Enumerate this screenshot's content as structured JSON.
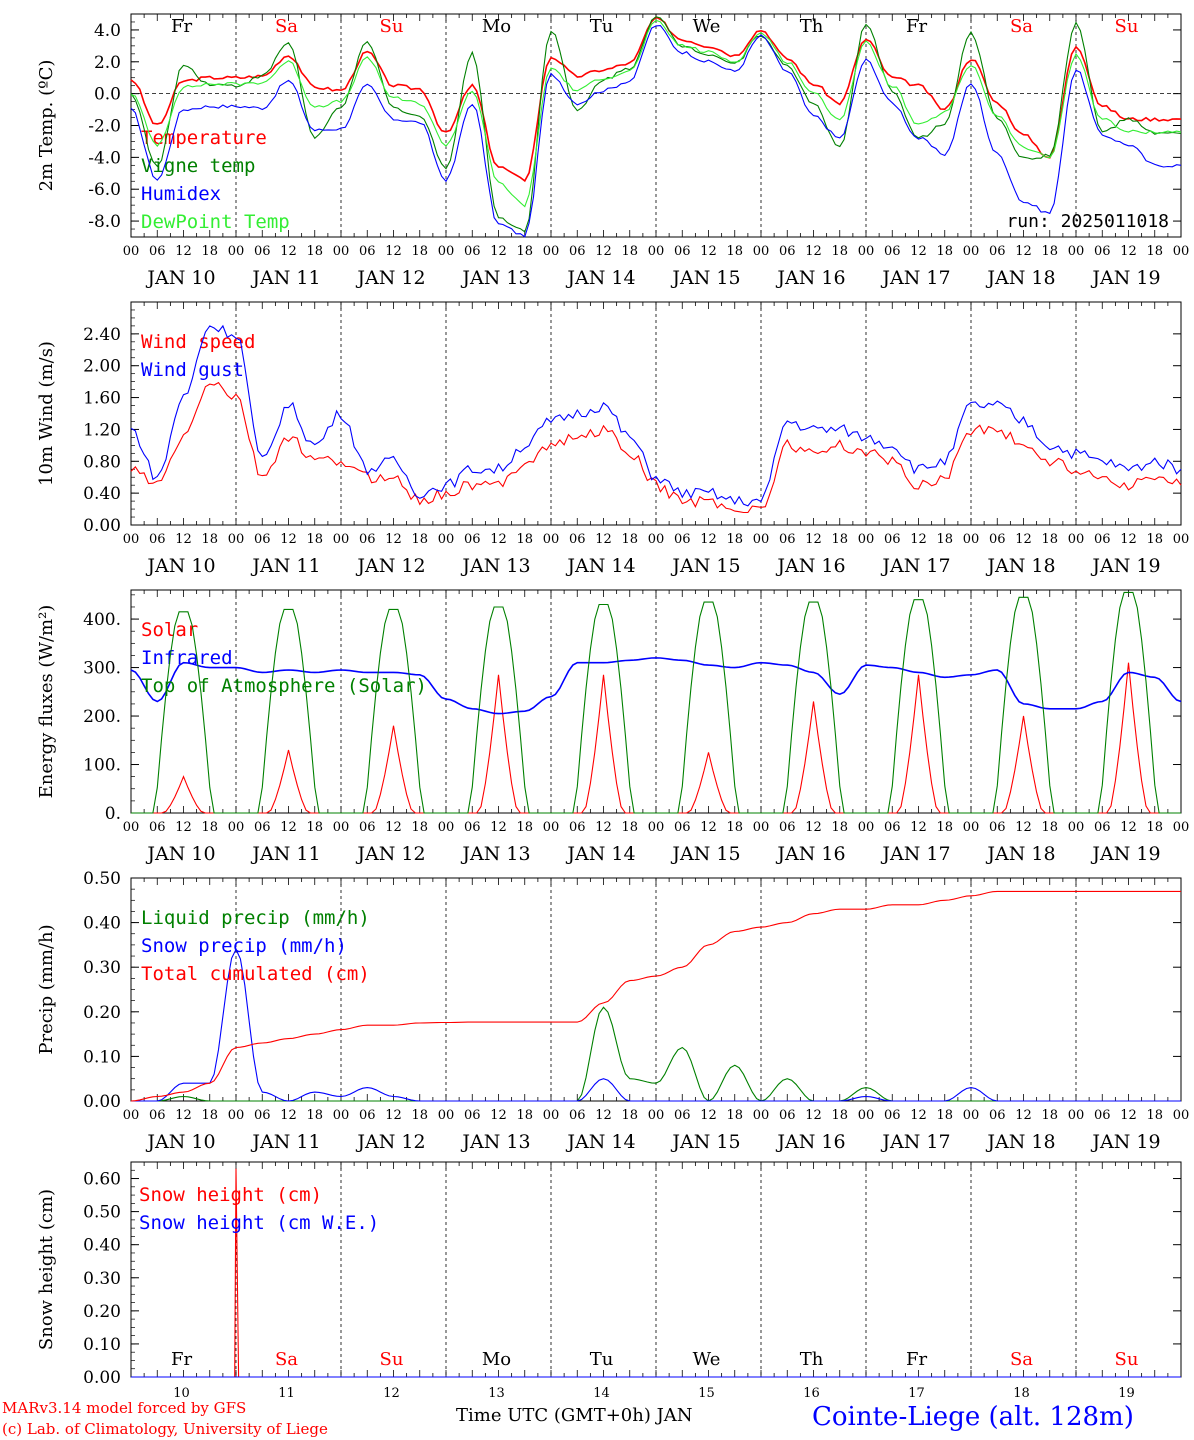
{
  "days": [
    {
      "date_label": "JAN 10",
      "date_num": "10",
      "dow": "Fr",
      "weekend": false
    },
    {
      "date_label": "JAN 11",
      "date_num": "11",
      "dow": "Sa",
      "weekend": true
    },
    {
      "date_label": "JAN 12",
      "date_num": "12",
      "dow": "Su",
      "weekend": true
    },
    {
      "date_label": "JAN 13",
      "date_num": "13",
      "dow": "Mo",
      "weekend": false
    },
    {
      "date_label": "JAN 14",
      "date_num": "14",
      "dow": "Tu",
      "weekend": false
    },
    {
      "date_label": "JAN 15",
      "date_num": "15",
      "dow": "We",
      "weekend": false
    },
    {
      "date_label": "JAN 16",
      "date_num": "16",
      "dow": "Th",
      "weekend": false
    },
    {
      "date_label": "JAN 17",
      "date_num": "17",
      "dow": "Fr",
      "weekend": false
    },
    {
      "date_label": "JAN 18",
      "date_num": "18",
      "dow": "Sa",
      "weekend": true
    },
    {
      "date_label": "JAN 19",
      "date_num": "19",
      "dow": "Su",
      "weekend": true
    }
  ],
  "hour_ticks": [
    "00",
    "06",
    "12",
    "18"
  ],
  "colors": {
    "red": "#ff0000",
    "green": "#008000",
    "blue": "#0000ff",
    "lightgreen": "#33ee33",
    "weekend": "#ff0000",
    "weekday": "#000000"
  },
  "footer": {
    "model_line": "MARv3.14 model forced by GFS",
    "copyright_line": "(c) Lab. of Climatology, University of Liege",
    "time_axis_label": "Time UTC (GMT+0h) JAN",
    "station": "Cointe-Liege (alt. 128m)"
  },
  "chart_data": [
    {
      "type": "line",
      "ylabel": "2m Temp. (ºC)",
      "ylim": [
        -9.0,
        5.0
      ],
      "yticks": [
        "-8.0",
        "-6.0",
        "-4.0",
        "-2.0",
        "0.0",
        "2.0",
        "4.0"
      ],
      "annotation": "run: 2025011018",
      "x": [
        0,
        6,
        12,
        18,
        24,
        30,
        36,
        42,
        48,
        54,
        60,
        66,
        72,
        78,
        84,
        90,
        96,
        102,
        108,
        114,
        120,
        126,
        132,
        138,
        144,
        150,
        156,
        162,
        168,
        174,
        180,
        186,
        192,
        198,
        204,
        210,
        216,
        222,
        228,
        234,
        240
      ],
      "series": [
        {
          "name": "Temperature",
          "color": "#ff0000",
          "values": [
            0.9,
            -2.0,
            0.8,
            1.0,
            1.0,
            1.1,
            2.4,
            0.4,
            0.2,
            2.6,
            0.5,
            0.3,
            -2.5,
            0.5,
            -4.6,
            -5.4,
            2.3,
            1.1,
            1.5,
            1.9,
            4.7,
            3.4,
            3.0,
            2.4,
            4.0,
            2.2,
            0.6,
            -0.6,
            3.4,
            1.0,
            0.5,
            -1.0,
            2.2,
            -0.6,
            -2.6,
            -4.0,
            3.0,
            -0.8,
            -1.6,
            -1.6,
            -1.6
          ]
        },
        {
          "name": "Vigne temp",
          "color": "#008000",
          "values": [
            0.0,
            -4.6,
            1.8,
            0.6,
            0.5,
            1.1,
            3.2,
            -2.8,
            -0.8,
            3.2,
            -0.9,
            -1.4,
            -4.6,
            2.5,
            -7.8,
            -8.6,
            4.0,
            -1.1,
            0.9,
            1.6,
            4.8,
            3.0,
            2.5,
            1.9,
            3.7,
            1.7,
            -0.6,
            -3.4,
            4.3,
            0.2,
            -2.8,
            -1.9,
            3.8,
            -1.5,
            -4.1,
            -3.9,
            4.4,
            -2.4,
            -1.6,
            -2.5,
            -2.5
          ]
        },
        {
          "name": "Humidex",
          "color": "#0000ff",
          "values": [
            -1.0,
            -5.4,
            -1.0,
            -0.8,
            -0.8,
            -0.9,
            0.8,
            -2.3,
            -2.2,
            0.5,
            -1.6,
            -1.8,
            -5.4,
            -0.6,
            -8.2,
            -8.9,
            1.2,
            -0.6,
            0.2,
            0.8,
            4.3,
            2.6,
            2.0,
            1.4,
            3.6,
            1.4,
            -1.4,
            -2.8,
            2.1,
            -0.6,
            -2.8,
            -3.8,
            0.6,
            -3.8,
            -6.8,
            -7.5,
            1.5,
            -2.6,
            -3.2,
            -4.5,
            -4.5
          ]
        },
        {
          "name": "DewPoint Temp",
          "color": "#33ee33",
          "values": [
            0.0,
            -3.2,
            0.4,
            0.6,
            0.6,
            0.7,
            2.0,
            -0.8,
            -0.5,
            2.2,
            -0.3,
            -0.6,
            -3.2,
            0.2,
            -5.6,
            -7.0,
            1.6,
            0.2,
            1.0,
            1.4,
            4.5,
            3.0,
            2.6,
            2.0,
            3.8,
            2.0,
            0.0,
            -1.6,
            3.2,
            0.5,
            -2.0,
            -1.2,
            1.8,
            -1.4,
            -3.4,
            -4.0,
            2.4,
            -1.6,
            -2.4,
            -2.4,
            -2.4
          ]
        }
      ]
    },
    {
      "type": "line",
      "ylabel": "10m Wind (m/s)",
      "ylim": [
        0.0,
        2.8
      ],
      "yticks": [
        "0.00",
        "0.40",
        "0.80",
        "1.20",
        "1.60",
        "2.00",
        "2.40"
      ],
      "x": [
        0,
        6,
        12,
        18,
        24,
        30,
        36,
        42,
        48,
        54,
        60,
        66,
        72,
        78,
        84,
        90,
        96,
        102,
        108,
        114,
        120,
        126,
        132,
        138,
        144,
        150,
        156,
        162,
        168,
        174,
        180,
        186,
        192,
        198,
        204,
        210,
        216,
        222,
        228,
        234,
        240
      ],
      "series": [
        {
          "name": "Wind speed",
          "color": "#ff0000",
          "values": [
            0.7,
            0.5,
            1.1,
            1.8,
            1.6,
            0.6,
            1.1,
            0.8,
            0.8,
            0.6,
            0.6,
            0.3,
            0.4,
            0.5,
            0.5,
            0.8,
            1.0,
            1.1,
            1.2,
            0.9,
            0.5,
            0.3,
            0.3,
            0.2,
            0.2,
            1.0,
            0.9,
            1.0,
            0.9,
            0.8,
            0.5,
            0.6,
            1.2,
            1.2,
            1.0,
            0.8,
            0.7,
            0.6,
            0.5,
            0.6,
            0.5
          ]
        },
        {
          "name": "Wind gust",
          "color": "#0000ff",
          "values": [
            1.2,
            0.6,
            1.6,
            2.5,
            2.4,
            0.8,
            1.5,
            1.0,
            1.4,
            0.7,
            0.8,
            0.4,
            0.5,
            0.7,
            0.7,
            1.0,
            1.3,
            1.4,
            1.5,
            1.1,
            0.6,
            0.4,
            0.4,
            0.3,
            0.3,
            1.3,
            1.2,
            1.2,
            1.1,
            1.0,
            0.7,
            0.8,
            1.5,
            1.5,
            1.3,
            1.0,
            0.9,
            0.8,
            0.7,
            0.8,
            0.7
          ]
        }
      ]
    },
    {
      "type": "line",
      "ylabel": "Energy fluxes (W/m²)",
      "ylim": [
        0,
        460
      ],
      "yticks": [
        "0.",
        "100.",
        "200.",
        "300.",
        "400."
      ],
      "x": [
        0,
        6,
        12,
        18,
        24,
        30,
        36,
        42,
        48,
        54,
        60,
        66,
        72,
        78,
        84,
        90,
        96,
        102,
        108,
        114,
        120,
        126,
        132,
        138,
        144,
        150,
        156,
        162,
        168,
        174,
        180,
        186,
        192,
        198,
        204,
        210,
        216,
        222,
        228,
        234,
        240
      ],
      "series": [
        {
          "name": "Solar",
          "color": "#ff0000",
          "daily_peaks": [
            75,
            130,
            180,
            285,
            285,
            125,
            230,
            285,
            200,
            310
          ],
          "peak_hour": 12
        },
        {
          "name": "Infrared",
          "color": "#0000ff",
          "values": [
            295,
            230,
            310,
            300,
            300,
            290,
            295,
            290,
            295,
            290,
            290,
            285,
            235,
            215,
            205,
            210,
            240,
            310,
            310,
            315,
            320,
            315,
            305,
            300,
            310,
            305,
            290,
            245,
            305,
            300,
            290,
            280,
            285,
            295,
            225,
            215,
            215,
            230,
            290,
            280,
            230
          ]
        },
        {
          "name": "Top of Atmosphere (Solar)",
          "color": "#008000",
          "daily_peaks": [
            415,
            420,
            420,
            425,
            430,
            435,
            435,
            440,
            445,
            455
          ],
          "peak_hour": 12
        }
      ]
    },
    {
      "type": "line",
      "ylabel": "Precip (mm/h)",
      "ylim": [
        0.0,
        0.5
      ],
      "yticks": [
        "0.00",
        "0.10",
        "0.20",
        "0.30",
        "0.40",
        "0.50"
      ],
      "x": [
        0,
        6,
        12,
        18,
        24,
        30,
        36,
        42,
        48,
        54,
        60,
        66,
        72,
        78,
        84,
        90,
        96,
        102,
        108,
        114,
        120,
        126,
        132,
        138,
        144,
        150,
        156,
        162,
        168,
        174,
        180,
        186,
        192,
        198,
        204,
        210,
        216,
        222,
        228,
        234,
        240
      ],
      "series": [
        {
          "name": "Liquid precip (mm/h)",
          "color": "#008000",
          "values": [
            0,
            0,
            0.01,
            0.0,
            0.0,
            0,
            0,
            0,
            0,
            0,
            0,
            0,
            0,
            0,
            0,
            0,
            0,
            0,
            0.21,
            0.05,
            0.04,
            0.12,
            0.0,
            0.08,
            0.0,
            0.05,
            0.0,
            0.0,
            0.03,
            0.0,
            0,
            0,
            0,
            0,
            0,
            0,
            0,
            0,
            0,
            0,
            0
          ]
        },
        {
          "name": "Snow precip (mm/h)",
          "color": "#0000ff",
          "values": [
            0,
            0,
            0.04,
            0.04,
            0.34,
            0.02,
            0.0,
            0.02,
            0.01,
            0.03,
            0.01,
            0.0,
            0,
            0,
            0,
            0,
            0,
            0,
            0.05,
            0.0,
            0,
            0,
            0,
            0,
            0,
            0,
            0,
            0,
            0.01,
            0,
            0,
            0,
            0.03,
            0.0,
            0,
            0,
            0,
            0,
            0,
            0,
            0
          ]
        },
        {
          "name": "Total cumulated (cm)",
          "color": "#ff0000",
          "values": [
            0.0,
            0.01,
            0.02,
            0.04,
            0.12,
            0.13,
            0.14,
            0.15,
            0.16,
            0.17,
            0.17,
            0.175,
            0.176,
            0.177,
            0.177,
            0.177,
            0.177,
            0.177,
            0.22,
            0.27,
            0.28,
            0.3,
            0.35,
            0.38,
            0.39,
            0.4,
            0.42,
            0.43,
            0.43,
            0.44,
            0.44,
            0.45,
            0.46,
            0.47,
            0.47,
            0.47,
            0.47,
            0.47,
            0.47,
            0.47,
            0.47
          ]
        }
      ]
    },
    {
      "type": "line",
      "ylabel": "Snow height (cm)",
      "ylim": [
        0.0,
        0.65
      ],
      "yticks": [
        "0.00",
        "0.10",
        "0.20",
        "0.30",
        "0.40",
        "0.50",
        "0.60"
      ],
      "series": [
        {
          "name": "Snow height (cm)",
          "color": "#ff0000",
          "spike_hour": 24,
          "spike_value": 0.63
        },
        {
          "name": "Snow height (cm W.E.)",
          "color": "#0000ff",
          "spike_hour": 24,
          "spike_value": 0.0
        }
      ]
    }
  ]
}
